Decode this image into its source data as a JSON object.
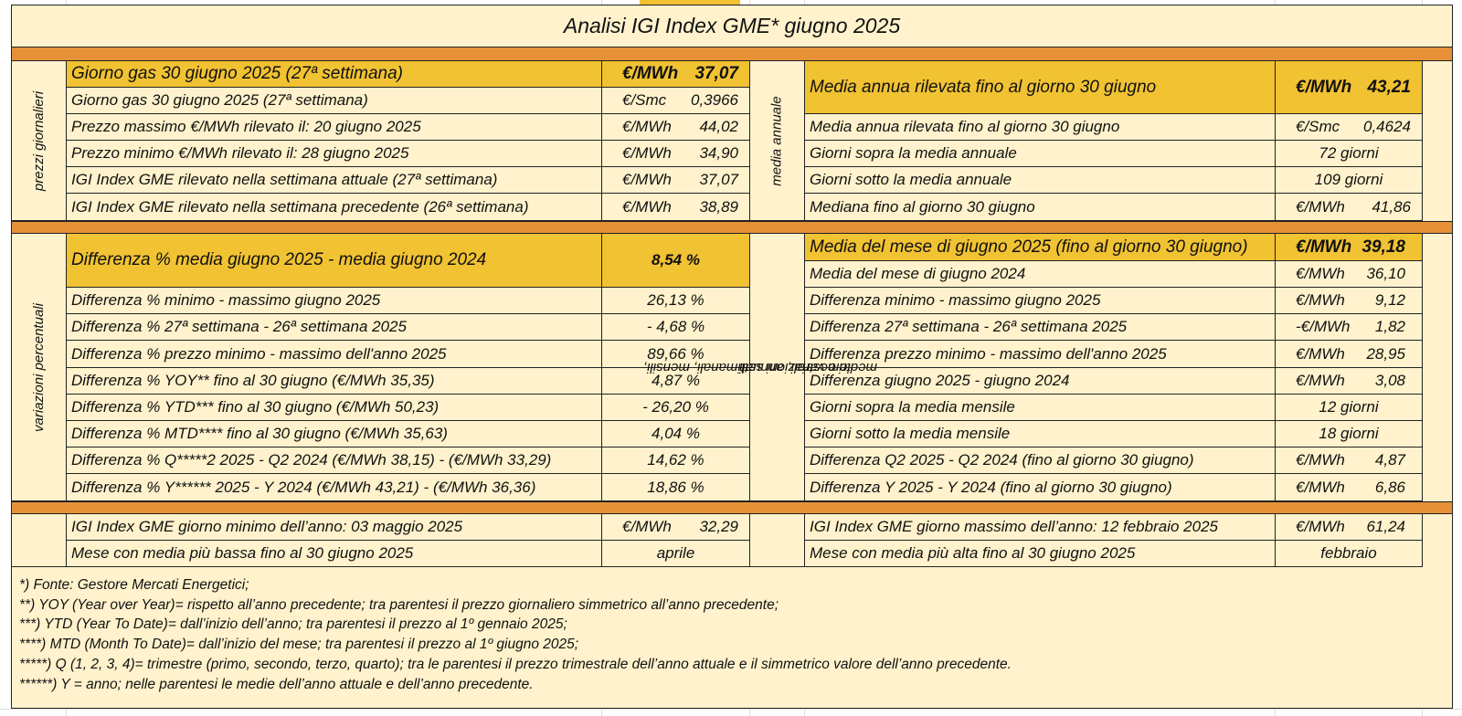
{
  "title": "Analisi IGI Index GME* giugno 2025",
  "colors": {
    "background": "#fff2cc",
    "highlight": "#f1c232",
    "band": "#e69138"
  },
  "sections": {
    "daily_label": "prezzi giornalieri",
    "annual_label": "media annuale",
    "pct_label": "variazioni percentuali",
    "var_label_1": "medie e variazioni settimanali, mensili,",
    "var_label_2": "trimestrali, annuali"
  },
  "daily": [
    {
      "label": "Giorno gas 30 giugno 2025 (27ª settimana)",
      "unit": "€/MWh",
      "value": "37,07"
    },
    {
      "label": "Giorno gas 30 giugno 2025 (27ª settimana)",
      "unit": "€/Smc",
      "value": "0,3966"
    },
    {
      "label": "Prezzo massimo €/MWh rilevato il: 20 giugno 2025",
      "unit": "€/MWh",
      "value": "44,02"
    },
    {
      "label": "Prezzo minimo €/MWh rilevato il: 28 giugno 2025",
      "unit": "€/MWh",
      "value": "34,90"
    },
    {
      "label": "IGI Index GME rilevato nella settimana attuale (27ª settimana)",
      "unit": "€/MWh",
      "value": "37,07"
    },
    {
      "label": "IGI Index GME rilevato nella settimana precedente (26ª settimana)",
      "unit": "€/MWh",
      "value": "38,89"
    }
  ],
  "annual": [
    {
      "label": "Media annua rilevata fino al giorno 30 giugno",
      "unit": "€/MWh",
      "value": "43,21"
    },
    {
      "label": "Media annua rilevata fino al giorno 30 giugno",
      "unit": "€/Smc",
      "value": "0,4624"
    },
    {
      "label": "Giorni sopra la media annuale",
      "value": "72 giorni"
    },
    {
      "label": "Giorni sotto la media annuale",
      "value": "109 giorni"
    },
    {
      "label": "Mediana fino al giorno 30 giugno",
      "unit": "€/MWh",
      "value": "41,86"
    }
  ],
  "percent": [
    {
      "label": "Differenza % media giugno 2025 - media giugno 2024",
      "value": "8,54 %"
    },
    {
      "label": "Differenza % minimo - massimo giugno 2025",
      "value": "26,13 %"
    },
    {
      "label": "Differenza % 27ª settimana - 26ª settimana 2025",
      "value": "- 4,68 %"
    },
    {
      "label": "Differenza % prezzo minimo - massimo dell'anno 2025",
      "value": "89,66 %"
    },
    {
      "label": "Differenza % YOY** fino al 30 giugno      (€/MWh 35,35)",
      "value": "4,87 %"
    },
    {
      "label": "Differenza % YTD*** fino al 30 giugno    (€/MWh 50,23)",
      "value": "- 26,20 %"
    },
    {
      "label": "Differenza % MTD**** fino al 30 giugno (€/MWh 35,63)",
      "value": "4,04 %"
    },
    {
      "label": "Differenza % Q*****2 2025 - Q2 2024   (€/MWh 38,15) - (€/MWh 33,29)",
      "value": "14,62 %"
    },
    {
      "label": "Differenza % Y****** 2025 - Y 2024      (€/MWh 43,21) - (€/MWh 36,36)",
      "value": "18,86 %"
    }
  ],
  "variations": [
    {
      "label": "Media del mese di giugno 2025 (fino al giorno 30 giugno)",
      "unit": "€/MWh",
      "value": "39,18"
    },
    {
      "label": "Media del mese di giugno 2024",
      "unit": "€/MWh",
      "value": "36,10"
    },
    {
      "label": "Differenza minimo - massimo giugno 2025",
      "unit": "€/MWh",
      "value": "9,12"
    },
    {
      "label": "Differenza 27ª settimana - 26ª settimana 2025",
      "unit": "-€/MWh",
      "value": "1,82"
    },
    {
      "label": "Differenza prezzo minimo - massimo dell'anno 2025",
      "unit": "€/MWh",
      "value": "28,95"
    },
    {
      "label": "Differenza giugno 2025 - giugno 2024",
      "unit": "€/MWh",
      "value": "3,08"
    },
    {
      "label": "Giorni sopra la media mensile",
      "value": "12 giorni"
    },
    {
      "label": "Giorni sotto la media mensile",
      "value": "18 giorni"
    },
    {
      "label": "Differenza Q2 2025 - Q2 2024 (fino al giorno 30 giugno)",
      "unit": "€/MWh",
      "value": "4,87"
    },
    {
      "label": "Differenza Y 2025 - Y 2024 (fino al giorno 30 giugno)",
      "unit": "€/MWh",
      "value": "6,86"
    }
  ],
  "bottom_left": [
    {
      "label": "IGI Index GME giorno minimo dell’anno: 03 maggio 2025",
      "unit": "€/MWh",
      "value": "32,29"
    },
    {
      "label": "Mese con media più bassa fino al 30 giugno 2025",
      "value": "aprile"
    }
  ],
  "bottom_right": [
    {
      "label": "IGI Index GME giorno massimo dell’anno: 12 febbraio 2025",
      "unit": "€/MWh",
      "value": "61,24"
    },
    {
      "label": "Mese con media più alta fino al 30 giugno 2025",
      "value": "febbraio"
    }
  ],
  "notes": [
    "*) Fonte: Gestore Mercati Energetici;",
    "**) YOY (Year over Year)= rispetto all’anno precedente; tra parentesi il prezzo giornaliero simmetrico all’anno precedente;",
    "***) YTD (Year To Date)= dall’inizio dell’anno; tra parentesi il prezzo al 1º gennaio 2025;",
    "****) MTD (Month To Date)= dall’inizio del mese; tra parentesi il prezzo al 1º giugno 2025;",
    "*****) Q (1, 2, 3, 4)= trimestre (primo, secondo, terzo, quarto); tra le parentesi il prezzo trimestrale dell’anno attuale e il simmetrico valore dell’anno precedente.",
    "******) Y = anno; nelle parentesi le medie dell’anno attuale e dell’anno precedente."
  ]
}
